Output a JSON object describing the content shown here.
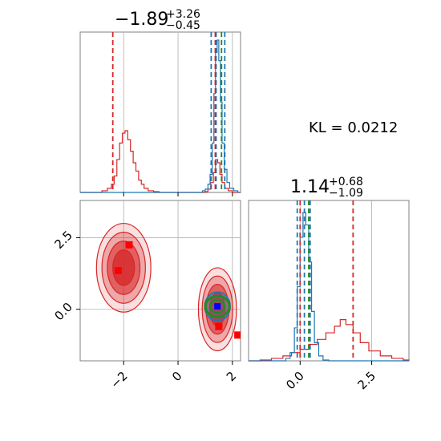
{
  "chart_data": {
    "type": "corner",
    "kl_text": "KL = 0.0212",
    "colors": {
      "red": "#d62728",
      "blue": "#1f77b4",
      "green": "#228b22",
      "grid": "#b0b0b0",
      "point_red": "#ff0000",
      "point_blue": "#0000ff"
    },
    "params": [
      {
        "title": {
          "median": "−1.89",
          "plus": "+3.26",
          "minus": "−0.45"
        },
        "range": [
          -3.6,
          2.3
        ],
        "ticks": [
          -2,
          0,
          2
        ],
        "tick_labels": [
          "−2",
          "0",
          "2"
        ],
        "quantiles_red": [
          -2.4,
          1.37
        ],
        "quantiles_blue": [
          1.22,
          1.4,
          1.72
        ],
        "quantile_green": 1.6,
        "hist_red": [
          {
            "x": -3.6,
            "y": 0
          },
          {
            "x": -3.0,
            "y": 0
          },
          {
            "x": -2.8,
            "y": 2
          },
          {
            "x": -2.6,
            "y": 5
          },
          {
            "x": -2.45,
            "y": 10
          },
          {
            "x": -2.35,
            "y": 20
          },
          {
            "x": -2.25,
            "y": 40
          },
          {
            "x": -2.15,
            "y": 60
          },
          {
            "x": -2.05,
            "y": 72
          },
          {
            "x": -1.95,
            "y": 75
          },
          {
            "x": -1.85,
            "y": 64
          },
          {
            "x": -1.75,
            "y": 50
          },
          {
            "x": -1.65,
            "y": 36
          },
          {
            "x": -1.55,
            "y": 26
          },
          {
            "x": -1.45,
            "y": 15
          },
          {
            "x": -1.35,
            "y": 10
          },
          {
            "x": -1.25,
            "y": 5
          },
          {
            "x": -1.1,
            "y": 2
          },
          {
            "x": -0.9,
            "y": 1
          },
          {
            "x": -0.7,
            "y": 0
          },
          {
            "x": 0.9,
            "y": 0
          },
          {
            "x": 1.0,
            "y": 1
          },
          {
            "x": 1.1,
            "y": 4
          },
          {
            "x": 1.2,
            "y": 12
          },
          {
            "x": 1.3,
            "y": 24
          },
          {
            "x": 1.38,
            "y": 40
          },
          {
            "x": 1.46,
            "y": 36
          },
          {
            "x": 1.54,
            "y": 22
          },
          {
            "x": 1.62,
            "y": 12
          },
          {
            "x": 1.72,
            "y": 5
          },
          {
            "x": 1.85,
            "y": 2
          },
          {
            "x": 2.0,
            "y": 0
          },
          {
            "x": 2.3,
            "y": 0
          }
        ],
        "hist_blue": [
          {
            "x": -3.6,
            "y": 0
          },
          {
            "x": 0.8,
            "y": 0
          },
          {
            "x": 0.9,
            "y": 2
          },
          {
            "x": 1.0,
            "y": 4
          },
          {
            "x": 1.1,
            "y": 10
          },
          {
            "x": 1.18,
            "y": 22
          },
          {
            "x": 1.26,
            "y": 60
          },
          {
            "x": 1.32,
            "y": 120
          },
          {
            "x": 1.38,
            "y": 170
          },
          {
            "x": 1.44,
            "y": 185
          },
          {
            "x": 1.5,
            "y": 160
          },
          {
            "x": 1.56,
            "y": 110
          },
          {
            "x": 1.62,
            "y": 60
          },
          {
            "x": 1.7,
            "y": 28
          },
          {
            "x": 1.8,
            "y": 12
          },
          {
            "x": 1.9,
            "y": 5
          },
          {
            "x": 2.05,
            "y": 2
          },
          {
            "x": 2.2,
            "y": 0
          },
          {
            "x": 2.3,
            "y": 0
          }
        ]
      },
      {
        "title": {
          "median": "1.14",
          "plus": "+0.68",
          "minus": "−1.09"
        },
        "range": [
          -1.8,
          3.8
        ],
        "ticks": [
          0.0,
          2.5
        ],
        "tick_labels": [
          "0.0",
          "2.5"
        ],
        "yticks": [
          0.0,
          2.5
        ],
        "quantiles_red": [
          0.0,
          1.85
        ],
        "quantiles_blue": [
          -0.1,
          0.15,
          0.35
        ],
        "quantile_green": 0.3,
        "hist_red": [
          {
            "x": -1.8,
            "y": 0
          },
          {
            "x": -1.4,
            "y": 1
          },
          {
            "x": -1.0,
            "y": 3
          },
          {
            "x": -0.6,
            "y": 6
          },
          {
            "x": -0.3,
            "y": 10
          },
          {
            "x": 0.0,
            "y": 14
          },
          {
            "x": 0.3,
            "y": 20
          },
          {
            "x": 0.6,
            "y": 26
          },
          {
            "x": 0.9,
            "y": 34
          },
          {
            "x": 1.2,
            "y": 42
          },
          {
            "x": 1.4,
            "y": 50
          },
          {
            "x": 1.6,
            "y": 44
          },
          {
            "x": 1.85,
            "y": 34
          },
          {
            "x": 2.1,
            "y": 22
          },
          {
            "x": 2.4,
            "y": 12
          },
          {
            "x": 2.8,
            "y": 6
          },
          {
            "x": 3.2,
            "y": 3
          },
          {
            "x": 3.6,
            "y": 1
          },
          {
            "x": 3.8,
            "y": 0
          }
        ],
        "hist_blue": [
          {
            "x": -1.8,
            "y": 0
          },
          {
            "x": -0.7,
            "y": 0
          },
          {
            "x": -0.5,
            "y": 3
          },
          {
            "x": -0.35,
            "y": 10
          },
          {
            "x": -0.2,
            "y": 40
          },
          {
            "x": -0.1,
            "y": 90
          },
          {
            "x": 0.0,
            "y": 150
          },
          {
            "x": 0.1,
            "y": 180
          },
          {
            "x": 0.2,
            "y": 165
          },
          {
            "x": 0.3,
            "y": 120
          },
          {
            "x": 0.4,
            "y": 60
          },
          {
            "x": 0.5,
            "y": 22
          },
          {
            "x": 0.65,
            "y": 6
          },
          {
            "x": 0.8,
            "y": 1
          },
          {
            "x": 1.0,
            "y": 0
          },
          {
            "x": 3.8,
            "y": 0
          }
        ]
      }
    ],
    "points_red": [
      {
        "x": -2.2,
        "y": 1.35
      },
      {
        "x": -1.8,
        "y": 2.25
      },
      {
        "x": 1.5,
        "y": -0.6
      },
      {
        "x": 2.2,
        "y": -0.9
      }
    ],
    "point_blue": {
      "x": 1.45,
      "y": 0.1
    },
    "contour_green_center": {
      "x": 1.45,
      "y": 0.1
    },
    "contour_red_clusters": [
      {
        "cx": -2.0,
        "cy": 1.45,
        "rx": 1.0,
        "ry": 1.55
      },
      {
        "cx": 1.45,
        "cy": 0.0,
        "rx": 0.7,
        "ry": 1.45
      }
    ]
  }
}
